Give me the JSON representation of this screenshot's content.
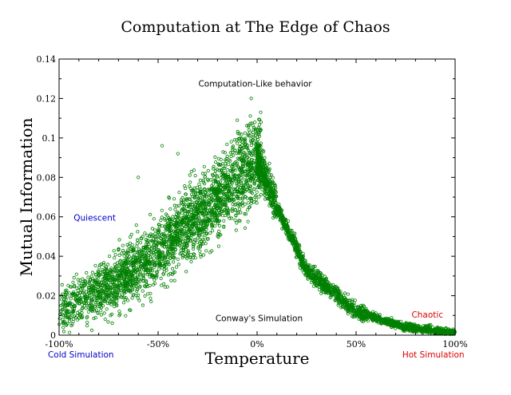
{
  "chart_data": {
    "type": "scatter",
    "title": "Computation at The Edge of Chaos",
    "xlabel": "Temperature",
    "ylabel": "Mutual Information",
    "xlim": [
      -100,
      100
    ],
    "ylim": [
      0,
      0.14
    ],
    "x_ticks": [
      {
        "value": -100,
        "label": "-100%"
      },
      {
        "value": -50,
        "label": "-50%"
      },
      {
        "value": 0,
        "label": "0%"
      },
      {
        "value": 50,
        "label": "50%"
      },
      {
        "value": 100,
        "label": "100%"
      }
    ],
    "y_ticks": [
      {
        "value": 0,
        "label": "0"
      },
      {
        "value": 0.02,
        "label": "0.02"
      },
      {
        "value": 0.04,
        "label": "0.04"
      },
      {
        "value": 0.06,
        "label": "0.06"
      },
      {
        "value": 0.08,
        "label": "0.08"
      },
      {
        "value": 0.1,
        "label": "0.1"
      },
      {
        "value": 0.12,
        "label": "0.12"
      },
      {
        "value": 0.14,
        "label": "0.14"
      }
    ],
    "grid": false,
    "marker": "open-circle",
    "series_color": "#008000",
    "trend": {
      "left_branch": [
        [
          -100,
          0.012
        ],
        [
          -75,
          0.025
        ],
        [
          -50,
          0.042
        ],
        [
          -25,
          0.065
        ],
        [
          0,
          0.09
        ]
      ],
      "right_branch": [
        [
          0,
          0.09
        ],
        [
          10,
          0.065
        ],
        [
          25,
          0.033
        ],
        [
          50,
          0.012
        ],
        [
          75,
          0.004
        ],
        [
          100,
          0.001
        ]
      ],
      "left_spread": 0.009,
      "right_spread": 0.002
    },
    "outliers": [
      [
        -3,
        0.12
      ],
      [
        -10,
        0.109
      ],
      [
        -48,
        0.096
      ],
      [
        -40,
        0.092
      ],
      [
        -60,
        0.08
      ],
      [
        2,
        0.108
      ]
    ],
    "annotations": [
      {
        "text": "Computation-Like behavior",
        "x": -1,
        "y": 0.126,
        "color": "#000000"
      },
      {
        "text": "Quiescent",
        "x": -82,
        "y": 0.058,
        "color": "#0000cc"
      },
      {
        "text": "Conway's Simulation",
        "x": 1,
        "y": 0.007,
        "color": "#000000"
      },
      {
        "text": "Chaotic",
        "x": 86,
        "y": 0.009,
        "color": "#dd0000"
      },
      {
        "text": "Cold Simulation",
        "x": -89,
        "y": -0.0113,
        "color": "#0000cc"
      },
      {
        "text": "Hot Simulation",
        "x": 89,
        "y": -0.0113,
        "color": "#dd0000"
      }
    ]
  }
}
